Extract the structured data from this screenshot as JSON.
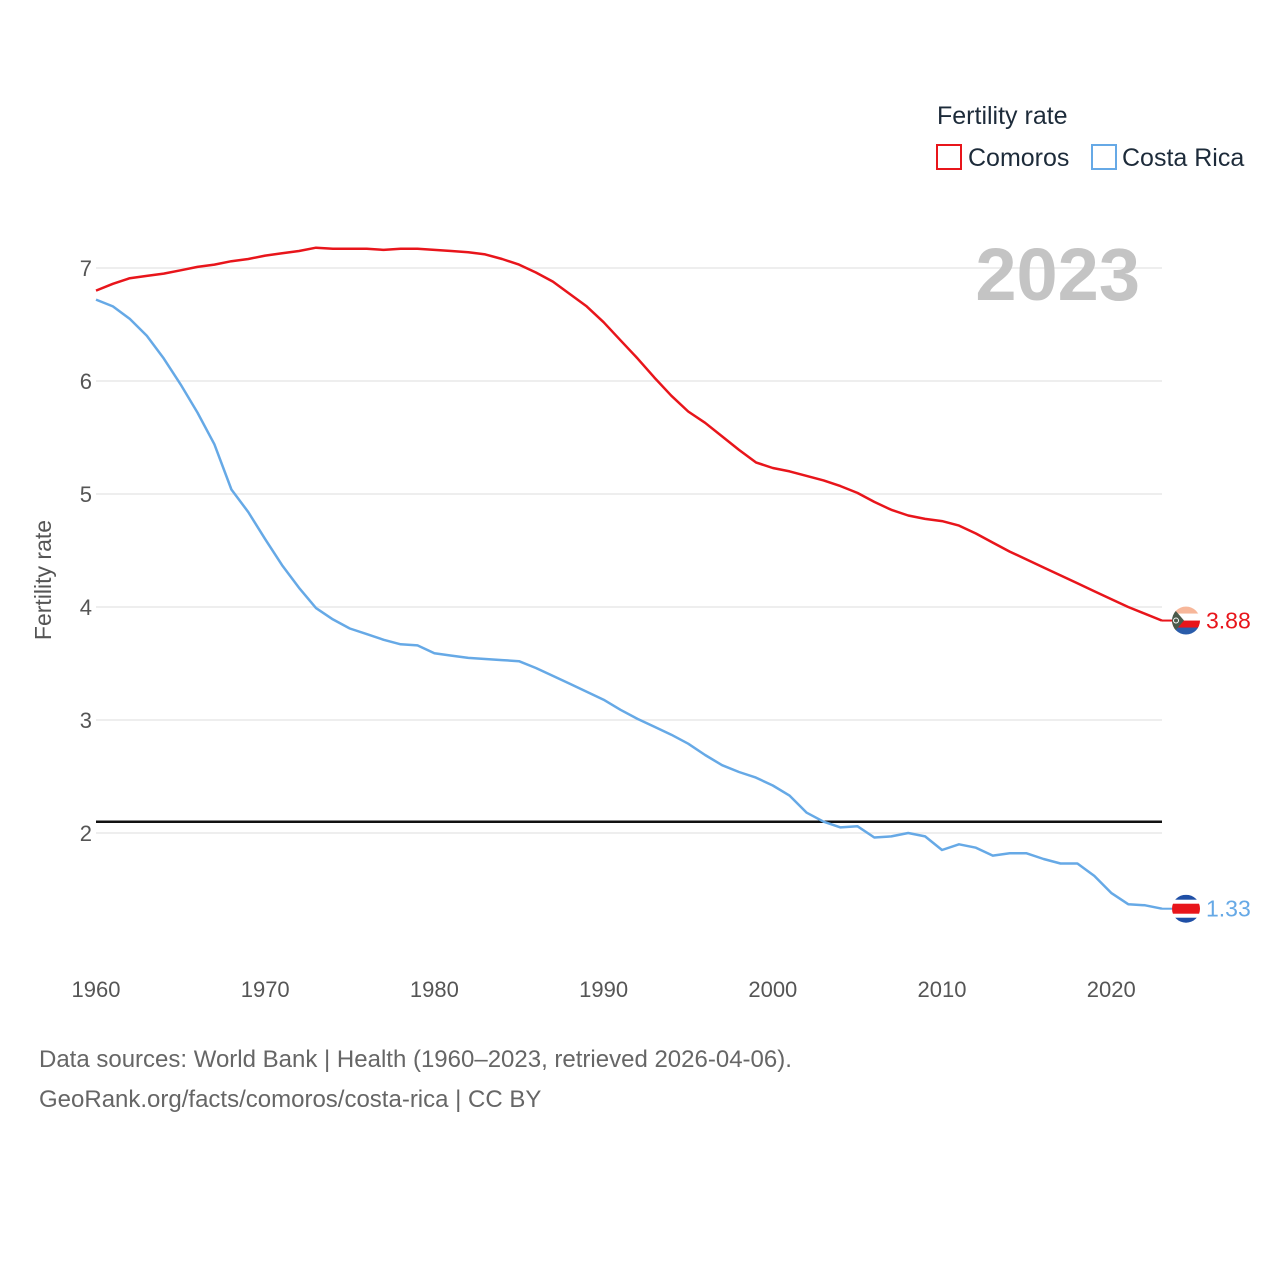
{
  "chart_data": {
    "type": "line",
    "title_year": "2023",
    "legend_title": "Fertility rate",
    "ylabel": "Fertility rate",
    "xlabel": "",
    "xlim": [
      1960,
      2023
    ],
    "ylim": [
      1.0,
      7.3
    ],
    "x_ticks": [
      1960,
      1970,
      1980,
      1990,
      2000,
      2010,
      2020
    ],
    "y_ticks": [
      2,
      3,
      4,
      5,
      6,
      7
    ],
    "reference_line": 2.1,
    "x": [
      1960,
      1961,
      1962,
      1963,
      1964,
      1965,
      1966,
      1967,
      1968,
      1969,
      1970,
      1971,
      1972,
      1973,
      1974,
      1975,
      1976,
      1977,
      1978,
      1979,
      1980,
      1981,
      1982,
      1983,
      1984,
      1985,
      1986,
      1987,
      1988,
      1989,
      1990,
      1991,
      1992,
      1993,
      1994,
      1995,
      1996,
      1997,
      1998,
      1999,
      2000,
      2001,
      2002,
      2003,
      2004,
      2005,
      2006,
      2007,
      2008,
      2009,
      2010,
      2011,
      2012,
      2013,
      2014,
      2015,
      2016,
      2017,
      2018,
      2019,
      2020,
      2021,
      2022,
      2023
    ],
    "series": [
      {
        "name": "Comoros",
        "color": "#e8151b",
        "end_label": "3.88",
        "values": [
          6.8,
          6.86,
          6.91,
          6.93,
          6.95,
          6.98,
          7.01,
          7.03,
          7.06,
          7.08,
          7.11,
          7.13,
          7.15,
          7.18,
          7.17,
          7.17,
          7.17,
          7.16,
          7.17,
          7.17,
          7.16,
          7.15,
          7.14,
          7.12,
          7.08,
          7.03,
          6.96,
          6.88,
          6.77,
          6.66,
          6.52,
          6.36,
          6.2,
          6.03,
          5.87,
          5.73,
          5.63,
          5.51,
          5.39,
          5.28,
          5.23,
          5.2,
          5.16,
          5.12,
          5.07,
          5.01,
          4.93,
          4.86,
          4.81,
          4.78,
          4.76,
          4.72,
          4.65,
          4.57,
          4.49,
          4.42,
          4.35,
          4.28,
          4.21,
          4.14,
          4.07,
          4.0,
          3.94,
          3.88
        ]
      },
      {
        "name": "Costa Rica",
        "color": "#66a9e6",
        "end_label": "1.33",
        "values": [
          6.72,
          6.66,
          6.55,
          6.4,
          6.2,
          5.97,
          5.72,
          5.44,
          5.04,
          4.84,
          4.6,
          4.37,
          4.17,
          3.99,
          3.89,
          3.81,
          3.76,
          3.71,
          3.67,
          3.66,
          3.59,
          3.57,
          3.55,
          3.54,
          3.53,
          3.52,
          3.46,
          3.39,
          3.32,
          3.25,
          3.18,
          3.09,
          3.01,
          2.94,
          2.87,
          2.79,
          2.69,
          2.6,
          2.54,
          2.49,
          2.42,
          2.33,
          2.18,
          2.1,
          2.05,
          2.06,
          1.96,
          1.97,
          2.0,
          1.97,
          1.85,
          1.9,
          1.87,
          1.8,
          1.82,
          1.82,
          1.77,
          1.73,
          1.73,
          1.62,
          1.47,
          1.37,
          1.36,
          1.33
        ]
      }
    ]
  },
  "footer": {
    "line1": "Data sources: World Bank | Health (1960–2023, retrieved 2026-04-06).",
    "line2": "GeoRank.org/facts/comoros/costa-rica | CC BY"
  }
}
